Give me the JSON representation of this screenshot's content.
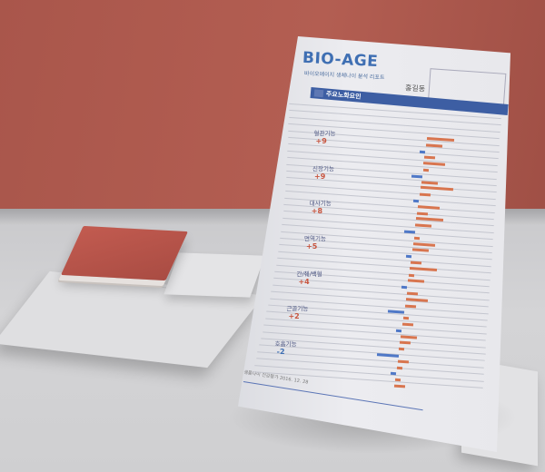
{
  "scene": {
    "description_colors": {
      "wall": "#ad5a4f",
      "table": "#cfcfd1",
      "paper": "#e8e8ec",
      "accent": "#3d5ea3",
      "bar_pos": "#d8754f",
      "bar_neg": "#4f78c7"
    }
  },
  "report": {
    "logo": "BIO-AGE",
    "logo_sub": "바이오에이지 생체나이 분석 리포트",
    "name": "홍길동",
    "banner": "주요노화요인",
    "sections": [
      {
        "label": "혈관기능",
        "score": "+9"
      },
      {
        "label": "신장기능",
        "score": "+9"
      },
      {
        "label": "대사기능",
        "score": "+8"
      },
      {
        "label": "면역기능",
        "score": "+5"
      },
      {
        "label": "간/췌/백혈",
        "score": "+4"
      },
      {
        "label": "근골기능",
        "score": "+2"
      },
      {
        "label": "호흡기능",
        "score": "-2"
      }
    ],
    "footer": "생물나이 건강평가    2016. 12. 28"
  },
  "chart_data": {
    "type": "bar",
    "title": "",
    "orientation": "horizontal",
    "values": [
      5,
      3,
      -1,
      2,
      4,
      1,
      -2,
      3,
      6,
      2,
      -1,
      4,
      2,
      5,
      3,
      -2,
      1,
      4,
      3,
      -1,
      2,
      5,
      1,
      3,
      -1,
      2,
      4,
      2,
      -3,
      1,
      2,
      -1,
      3,
      2,
      1,
      -4,
      2,
      1,
      -1,
      1,
      2
    ]
  }
}
